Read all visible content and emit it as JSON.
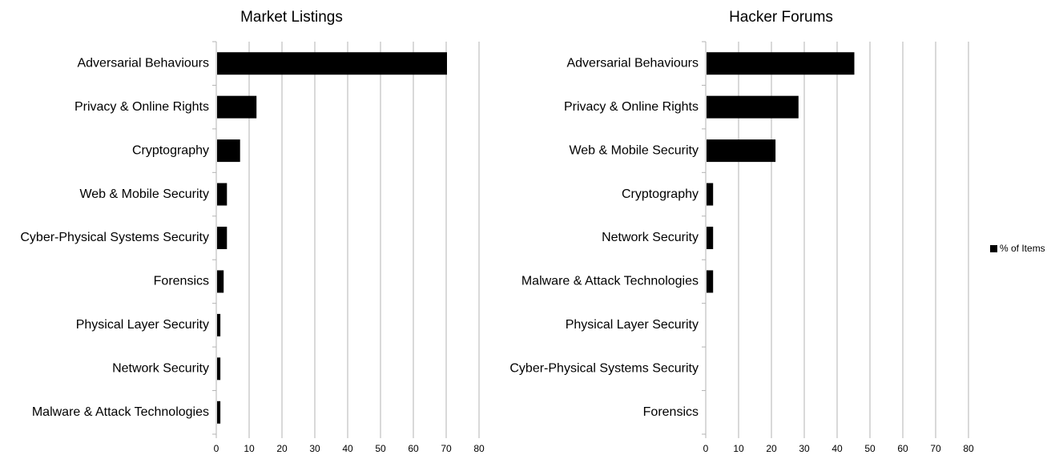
{
  "chart_data": [
    {
      "type": "hbar",
      "title": "Market Listings",
      "categories": [
        "Adversarial Behaviours",
        "Privacy & Online Rights",
        "Cryptography",
        "Web & Mobile Security",
        "Cyber-Physical Systems Security",
        "Forensics",
        "Physical Layer Security",
        "Network Security",
        "Malware & Attack Technologies"
      ],
      "values": [
        70,
        12,
        7,
        3,
        3,
        2,
        1,
        1,
        1
      ],
      "color": "#000000",
      "xlim": [
        0,
        80
      ],
      "xticks": [
        0,
        10,
        20,
        30,
        40,
        50,
        60,
        70,
        80
      ],
      "grid": true
    },
    {
      "type": "hbar",
      "title": "Hacker Forums",
      "categories": [
        "Adversarial Behaviours",
        "Privacy & Online Rights",
        "Web & Mobile Security",
        "Cryptography",
        "Network Security",
        "Malware & Attack Technologies",
        "Physical Layer Security",
        "Cyber-Physical Systems Security",
        "Forensics"
      ],
      "values": [
        45,
        28,
        21,
        2,
        2,
        2,
        0,
        0,
        0
      ],
      "color": "#000000",
      "xlim": [
        0,
        80
      ],
      "xticks": [
        0,
        10,
        20,
        30,
        40,
        50,
        60,
        70,
        80
      ],
      "grid": true
    }
  ],
  "legend": {
    "label": "% of Items",
    "color": "#000000",
    "position": "right"
  }
}
